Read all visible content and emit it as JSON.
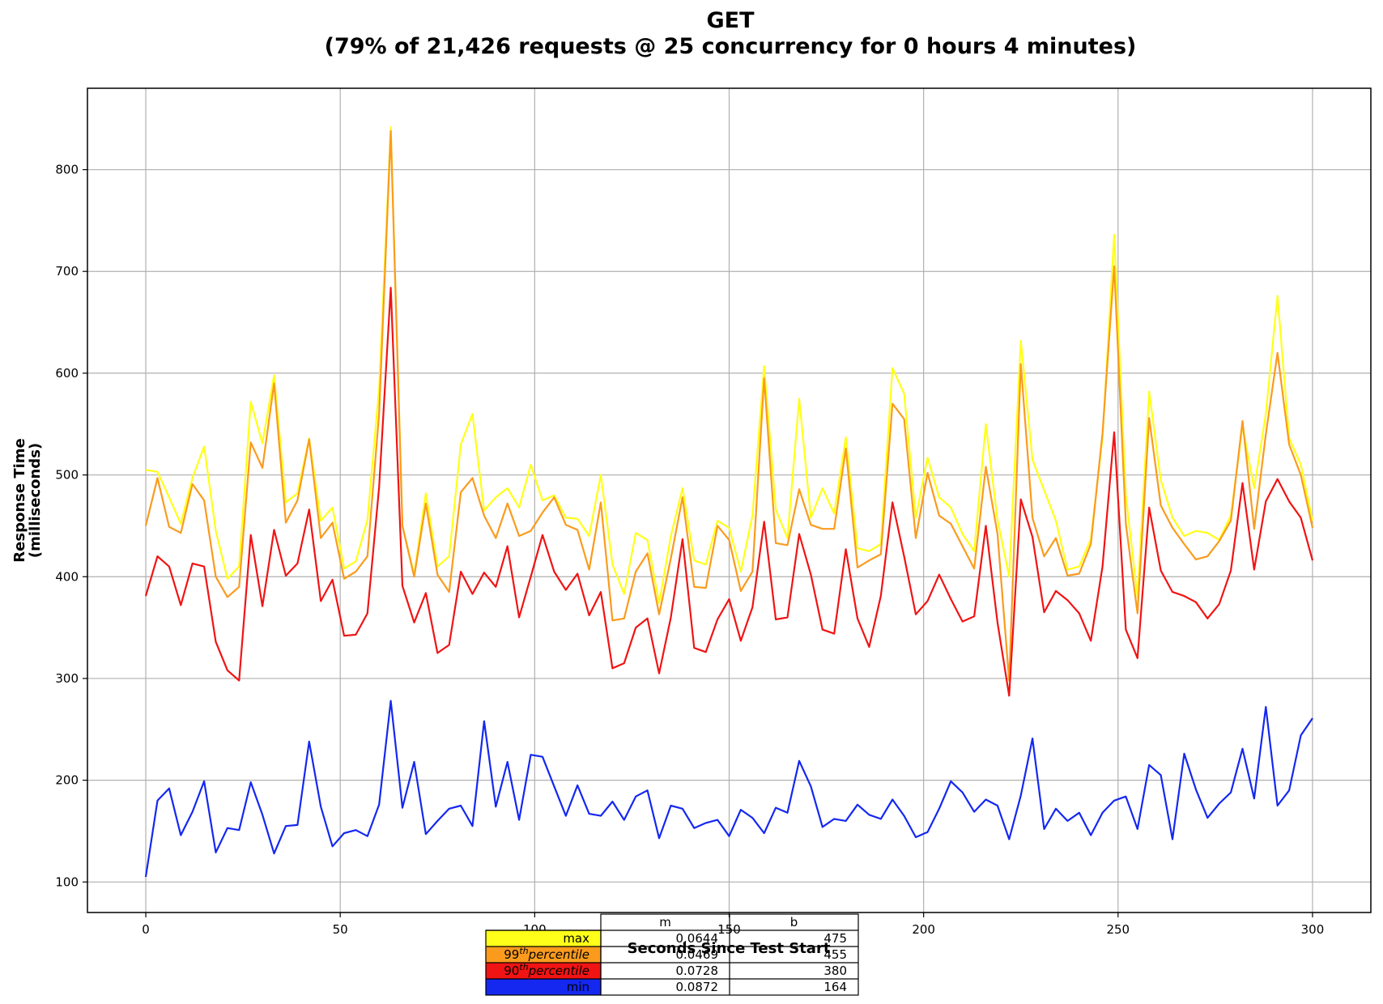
{
  "chart_data": {
    "type": "line",
    "title": "GET",
    "subtitle": "(79% of 21,426 requests @ 25 concurrency for 0 hours 4 minutes)",
    "xlabel": "Seconds Since Test Start",
    "ylabel": "Response Time",
    "ylabel_units": "(milliseconds)",
    "xlim": [
      -15,
      315
    ],
    "ylim": [
      70,
      880
    ],
    "xticks": [
      0,
      50,
      100,
      150,
      200,
      250,
      300
    ],
    "yticks": [
      100,
      200,
      300,
      400,
      500,
      600,
      700,
      800
    ],
    "grid": true,
    "x": [
      0,
      3,
      6,
      9,
      12,
      15,
      18,
      21,
      24,
      27,
      30,
      33,
      36,
      39,
      42,
      45,
      48,
      51,
      54,
      57,
      60,
      63,
      66,
      69,
      72,
      75,
      78,
      81,
      84,
      87,
      90,
      93,
      96,
      99,
      102,
      105,
      108,
      111,
      114,
      117,
      120,
      123,
      126,
      129,
      132,
      135,
      138,
      141,
      144,
      147,
      150,
      153,
      156,
      159,
      162,
      165,
      168,
      171,
      174,
      177,
      180,
      183,
      186,
      189,
      192,
      195,
      198,
      201,
      204,
      207,
      210,
      213,
      216,
      219,
      222,
      225,
      228,
      231,
      234,
      237,
      240,
      243,
      246,
      249,
      252,
      255,
      258,
      261,
      264,
      267,
      270,
      273,
      276,
      279,
      282,
      285,
      288,
      291,
      294,
      297,
      300
    ],
    "series": [
      {
        "name": "max",
        "color": "#ffff1a",
        "values": [
          505,
          503,
          478,
          452,
          497,
          528,
          445,
          398,
          410,
          572,
          531,
          598,
          473,
          482,
          536,
          455,
          468,
          408,
          415,
          456,
          585,
          842,
          450,
          402,
          482,
          410,
          420,
          530,
          560,
          465,
          478,
          487,
          468,
          510,
          475,
          480,
          458,
          457,
          440,
          500,
          412,
          383,
          443,
          436,
          374,
          440,
          487,
          416,
          412,
          455,
          448,
          405,
          460,
          607,
          466,
          438,
          575,
          458,
          487,
          462,
          537,
          428,
          425,
          432,
          605,
          580,
          458,
          517,
          478,
          468,
          442,
          425,
          550,
          456,
          400,
          632,
          515,
          485,
          455,
          407,
          410,
          437,
          536,
          736,
          480,
          380,
          582,
          495,
          458,
          440,
          445,
          443,
          436,
          460,
          548,
          487,
          560,
          676,
          536,
          510,
          455
        ]
      },
      {
        "name": "99th percentile",
        "color": "#fa9b1e",
        "values": [
          450,
          497,
          449,
          443,
          491,
          475,
          400,
          380,
          390,
          532,
          507,
          590,
          453,
          475,
          535,
          438,
          453,
          398,
          405,
          420,
          560,
          838,
          450,
          400,
          472,
          402,
          385,
          483,
          497,
          460,
          438,
          472,
          440,
          445,
          463,
          478,
          451,
          446,
          407,
          473,
          357,
          359,
          405,
          423,
          363,
          418,
          478,
          390,
          389,
          450,
          436,
          386,
          405,
          595,
          433,
          431,
          486,
          451,
          447,
          447,
          526,
          409,
          416,
          422,
          570,
          555,
          438,
          502,
          460,
          452,
          430,
          408,
          508,
          442,
          298,
          609,
          458,
          420,
          438,
          401,
          403,
          432,
          541,
          705,
          452,
          364,
          556,
          470,
          448,
          432,
          417,
          420,
          435,
          455,
          553,
          447,
          540,
          620,
          530,
          500,
          448
        ]
      },
      {
        "name": "90th percentile",
        "color": "#f01414",
        "values": [
          381,
          420,
          410,
          372,
          413,
          410,
          336,
          308,
          298,
          441,
          371,
          446,
          401,
          413,
          466,
          376,
          397,
          342,
          343,
          364,
          488,
          684,
          391,
          355,
          384,
          325,
          333,
          405,
          383,
          404,
          390,
          430,
          360,
          400,
          441,
          405,
          387,
          403,
          362,
          385,
          310,
          315,
          350,
          359,
          305,
          360,
          437,
          330,
          326,
          358,
          378,
          337,
          370,
          454,
          358,
          360,
          442,
          402,
          348,
          344,
          427,
          359,
          331,
          381,
          473,
          420,
          363,
          376,
          402,
          378,
          356,
          361,
          450,
          355,
          283,
          476,
          439,
          365,
          386,
          377,
          364,
          337,
          410,
          542,
          348,
          320,
          468,
          406,
          385,
          381,
          375,
          359,
          373,
          406,
          492,
          407,
          474,
          496,
          474,
          458,
          416
        ]
      },
      {
        "name": "min",
        "color": "#1428f0",
        "values": [
          105,
          180,
          192,
          146,
          169,
          199,
          129,
          153,
          151,
          198,
          166,
          128,
          155,
          156,
          238,
          174,
          135,
          148,
          151,
          145,
          176,
          278,
          173,
          218,
          147,
          160,
          172,
          175,
          155,
          258,
          174,
          218,
          161,
          225,
          223,
          194,
          165,
          195,
          167,
          165,
          179,
          161,
          184,
          190,
          143,
          175,
          172,
          153,
          158,
          161,
          145,
          171,
          163,
          148,
          173,
          168,
          219,
          194,
          154,
          162,
          160,
          176,
          166,
          162,
          181,
          165,
          144,
          149,
          172,
          199,
          188,
          169,
          181,
          175,
          142,
          185,
          241,
          152,
          172,
          160,
          168,
          146,
          168,
          180,
          184,
          152,
          215,
          205,
          142,
          226,
          191,
          163,
          177,
          188,
          231,
          182,
          272,
          175,
          190,
          244,
          261
        ]
      }
    ],
    "legend_table": {
      "columns": [
        "m",
        "b"
      ],
      "rows": [
        {
          "label": "max",
          "label_sup": "",
          "label_rest": "",
          "italic": false,
          "color": "#ffff1a",
          "m": "0.0644",
          "b": "475"
        },
        {
          "label": "99",
          "label_sup": "th",
          "label_rest": "percentile",
          "italic": true,
          "color": "#fa9b1e",
          "m": "0.0469",
          "b": "455"
        },
        {
          "label": "90",
          "label_sup": "th",
          "label_rest": "percentile",
          "italic": true,
          "color": "#f01414",
          "m": "0.0728",
          "b": "380"
        },
        {
          "label": "min",
          "label_sup": "",
          "label_rest": "",
          "italic": false,
          "color": "#1428f0",
          "m": "0.0872",
          "b": "164"
        }
      ]
    }
  }
}
